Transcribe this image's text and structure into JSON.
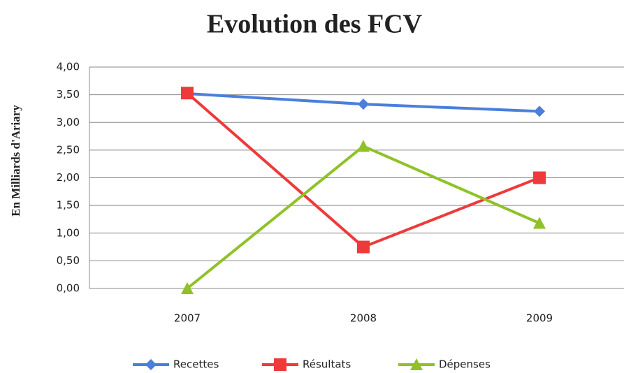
{
  "chart_data": {
    "type": "line",
    "title": "Evolution des FCV",
    "y_label": "En Milliards d'Ariary",
    "categories": [
      "2007",
      "2008",
      "2009"
    ],
    "series": [
      {
        "name": "Recettes",
        "color": "#4a7fdc",
        "marker": "diamond",
        "values": [
          3.52,
          3.33,
          3.2
        ]
      },
      {
        "name": "Résultats",
        "color": "#ee3a3a",
        "marker": "square",
        "values": [
          3.53,
          0.75,
          2.0
        ]
      },
      {
        "name": "Dépenses",
        "color": "#8fc227",
        "marker": "triangle",
        "values": [
          0.0,
          2.57,
          1.18
        ]
      }
    ],
    "ylim": [
      0,
      4
    ],
    "yticks": [
      {
        "value": 0,
        "label": "0,00"
      },
      {
        "value": 0.5,
        "label": "0,50"
      },
      {
        "value": 1,
        "label": "1,00"
      },
      {
        "value": 1.5,
        "label": "1,50"
      },
      {
        "value": 2,
        "label": "2,00"
      },
      {
        "value": 2.5,
        "label": "2,50"
      },
      {
        "value": 3,
        "label": "3,00"
      },
      {
        "value": 3.5,
        "label": "3,50"
      },
      {
        "value": 4,
        "label": "4,00"
      }
    ],
    "grid": true,
    "legend": "bottom"
  }
}
